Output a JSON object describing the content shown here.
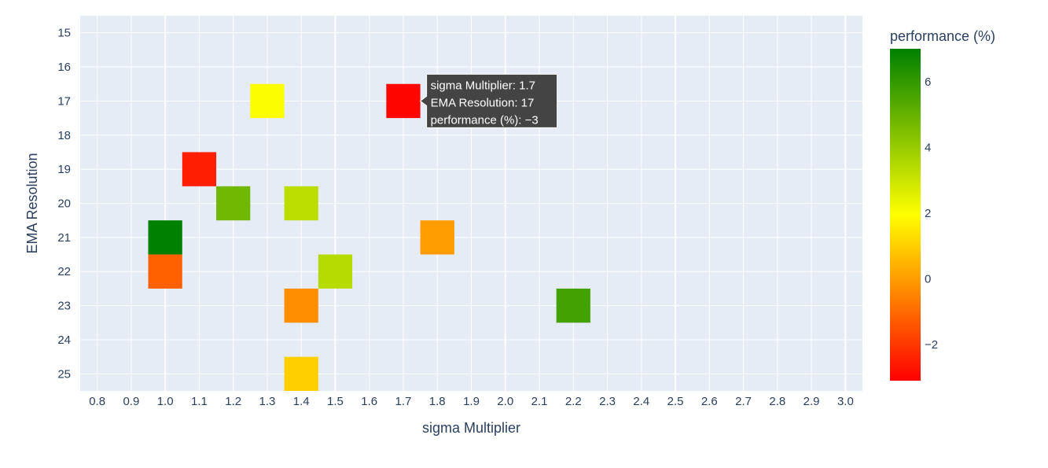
{
  "chart_data": {
    "type": "heatmap",
    "xlabel": "sigma Multiplier",
    "ylabel": "EMA Resolution",
    "x_ticks": [
      "0.8",
      "0.9",
      "1.0",
      "1.1",
      "1.2",
      "1.3",
      "1.4",
      "1.5",
      "1.6",
      "1.7",
      "1.8",
      "1.9",
      "2.0",
      "2.1",
      "2.2",
      "2.3",
      "2.4",
      "2.5",
      "2.6",
      "2.7",
      "2.8",
      "2.9",
      "3.0"
    ],
    "y_ticks": [
      "15",
      "16",
      "17",
      "18",
      "19",
      "20",
      "21",
      "22",
      "23",
      "24",
      "25"
    ],
    "xlim": [
      0.75,
      3.05
    ],
    "ylim": [
      25.5,
      14.5
    ],
    "y_reversed": true,
    "grid": true,
    "colorbar": {
      "title": "performance (%)",
      "range": [
        -3.1,
        7.0
      ],
      "tick_labels": [
        "−2",
        "0",
        "2",
        "4",
        "6"
      ],
      "tick_values": [
        -2,
        0,
        2,
        4,
        6
      ],
      "colorscale": [
        "#ff0000",
        "#ffff00",
        "#008000"
      ]
    },
    "points": [
      {
        "x": 1.3,
        "y": 17,
        "z": 2.0
      },
      {
        "x": 1.7,
        "y": 17,
        "z": -3.0
      },
      {
        "x": 1.1,
        "y": 19,
        "z": -2.5
      },
      {
        "x": 1.2,
        "y": 20,
        "z": 4.8
      },
      {
        "x": 1.4,
        "y": 20,
        "z": 3.3
      },
      {
        "x": 1.0,
        "y": 21,
        "z": 7.0
      },
      {
        "x": 1.8,
        "y": 21,
        "z": 0.0
      },
      {
        "x": 1.0,
        "y": 22,
        "z": -1.2
      },
      {
        "x": 1.5,
        "y": 22,
        "z": 3.4
      },
      {
        "x": 1.4,
        "y": 23,
        "z": -0.3
      },
      {
        "x": 2.2,
        "y": 23,
        "z": 5.7
      },
      {
        "x": 1.4,
        "y": 25,
        "z": 1.0
      }
    ],
    "hover": {
      "lines": [
        "sigma Multiplier: 1.7",
        "EMA Resolution: 17",
        "performance (%): −3"
      ]
    }
  }
}
